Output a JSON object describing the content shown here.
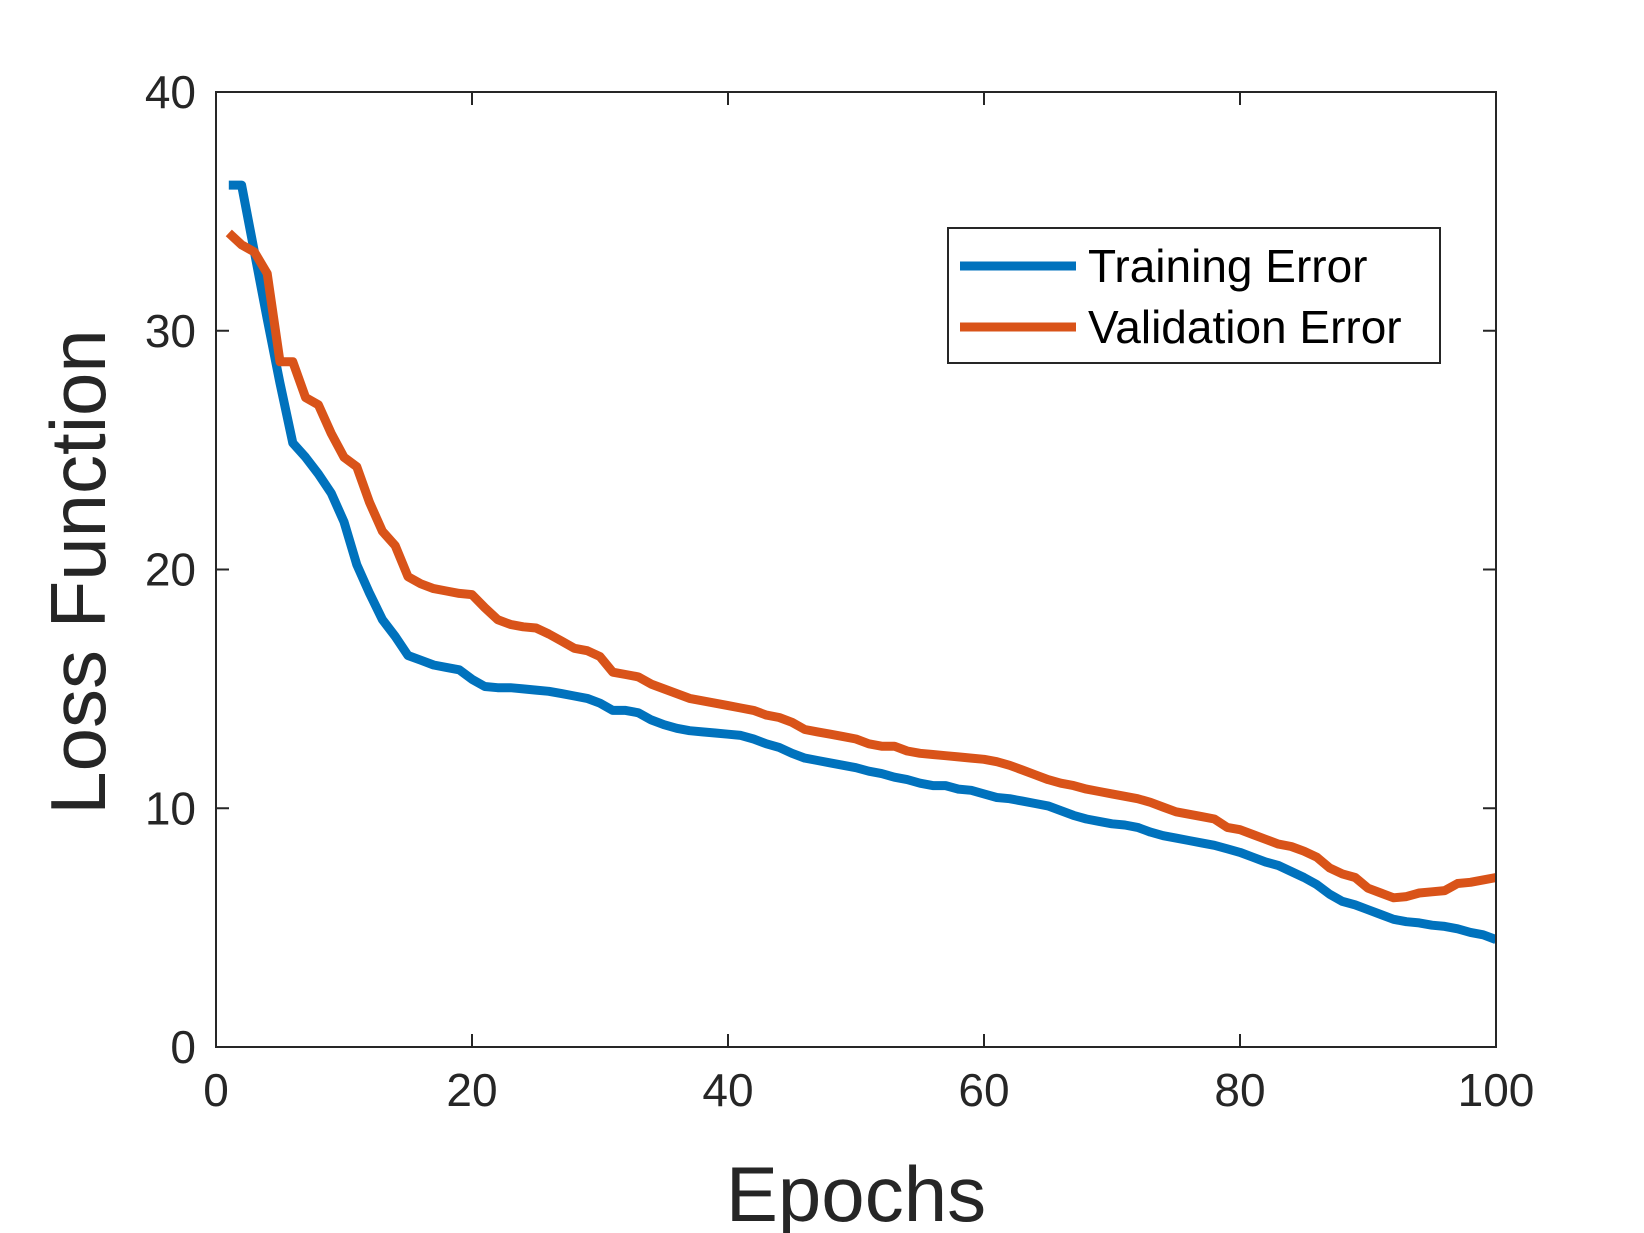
{
  "chart_data": {
    "type": "line",
    "title": "",
    "xlabel": "Epochs",
    "ylabel": "Loss Function",
    "xlim": [
      0,
      100
    ],
    "ylim": [
      0,
      40
    ],
    "xticks": [
      0,
      20,
      40,
      60,
      80,
      100
    ],
    "yticks": [
      0,
      10,
      20,
      30,
      40
    ],
    "grid": false,
    "legend_position": "top-right",
    "series": [
      {
        "name": "Training Error",
        "color": "#0072BD",
        "x": [
          1,
          2,
          3,
          4,
          5,
          6,
          7,
          8,
          9,
          10,
          11,
          12,
          13,
          14,
          15,
          16,
          17,
          18,
          19,
          20,
          21,
          22,
          23,
          24,
          25,
          26,
          27,
          28,
          29,
          30,
          31,
          32,
          33,
          34,
          35,
          36,
          37,
          38,
          39,
          40,
          41,
          42,
          43,
          44,
          45,
          46,
          47,
          48,
          49,
          50,
          51,
          52,
          53,
          54,
          55,
          56,
          57,
          58,
          59,
          60,
          61,
          62,
          63,
          64,
          65,
          66,
          67,
          68,
          69,
          70,
          71,
          72,
          73,
          74,
          75,
          76,
          77,
          78,
          79,
          80,
          81,
          82,
          83,
          84,
          85,
          86,
          87,
          88,
          89,
          90,
          91,
          92,
          93,
          94,
          95,
          96,
          97,
          98,
          99,
          100
        ],
        "y": [
          36.1,
          36.1,
          33.3,
          30.5,
          27.8,
          25.3,
          24.7,
          24.0,
          23.2,
          22.0,
          20.2,
          19.0,
          17.9,
          17.2,
          16.4,
          16.2,
          16.0,
          15.9,
          15.8,
          15.4,
          15.1,
          15.05,
          15.05,
          15.0,
          14.95,
          14.9,
          14.8,
          14.7,
          14.6,
          14.4,
          14.1,
          14.1,
          14.0,
          13.7,
          13.5,
          13.35,
          13.25,
          13.2,
          13.15,
          13.1,
          13.05,
          12.9,
          12.7,
          12.55,
          12.3,
          12.1,
          12.0,
          11.9,
          11.8,
          11.7,
          11.55,
          11.45,
          11.3,
          11.2,
          11.05,
          10.95,
          10.95,
          10.8,
          10.75,
          10.6,
          10.45,
          10.4,
          10.3,
          10.2,
          10.1,
          9.9,
          9.7,
          9.55,
          9.45,
          9.35,
          9.3,
          9.2,
          9.0,
          8.85,
          8.75,
          8.65,
          8.55,
          8.45,
          8.3,
          8.15,
          7.95,
          7.75,
          7.6,
          7.35,
          7.1,
          6.8,
          6.4,
          6.1,
          5.95,
          5.75,
          5.55,
          5.35,
          5.25,
          5.2,
          5.1,
          5.05,
          4.95,
          4.8,
          4.7,
          4.5
        ]
      },
      {
        "name": "Validation Error",
        "color": "#D95319",
        "x": [
          1,
          2,
          3,
          4,
          5,
          6,
          7,
          8,
          9,
          10,
          11,
          12,
          13,
          14,
          15,
          16,
          17,
          18,
          19,
          20,
          21,
          22,
          23,
          24,
          25,
          26,
          27,
          28,
          29,
          30,
          31,
          32,
          33,
          34,
          35,
          36,
          37,
          38,
          39,
          40,
          41,
          42,
          43,
          44,
          45,
          46,
          47,
          48,
          49,
          50,
          51,
          52,
          53,
          54,
          55,
          56,
          57,
          58,
          59,
          60,
          61,
          62,
          63,
          64,
          65,
          66,
          67,
          68,
          69,
          70,
          71,
          72,
          73,
          74,
          75,
          76,
          77,
          78,
          79,
          80,
          81,
          82,
          83,
          84,
          85,
          86,
          87,
          88,
          89,
          90,
          91,
          92,
          93,
          94,
          95,
          96,
          97,
          98,
          99,
          100
        ],
        "y": [
          34.1,
          33.6,
          33.3,
          32.4,
          28.7,
          28.7,
          27.2,
          26.9,
          25.7,
          24.7,
          24.3,
          22.8,
          21.6,
          21.0,
          19.7,
          19.4,
          19.2,
          19.1,
          19.0,
          18.95,
          18.4,
          17.9,
          17.7,
          17.6,
          17.55,
          17.3,
          17.0,
          16.7,
          16.6,
          16.35,
          15.7,
          15.6,
          15.5,
          15.2,
          15.0,
          14.8,
          14.6,
          14.5,
          14.4,
          14.3,
          14.2,
          14.1,
          13.9,
          13.8,
          13.6,
          13.3,
          13.2,
          13.1,
          13.0,
          12.9,
          12.7,
          12.6,
          12.6,
          12.4,
          12.3,
          12.25,
          12.2,
          12.15,
          12.1,
          12.05,
          11.95,
          11.8,
          11.6,
          11.4,
          11.2,
          11.05,
          10.95,
          10.8,
          10.7,
          10.6,
          10.5,
          10.4,
          10.25,
          10.05,
          9.85,
          9.75,
          9.65,
          9.55,
          9.2,
          9.1,
          8.9,
          8.7,
          8.5,
          8.4,
          8.2,
          7.95,
          7.5,
          7.25,
          7.1,
          6.65,
          6.45,
          6.25,
          6.3,
          6.45,
          6.5,
          6.55,
          6.85,
          6.9,
          7.0,
          7.1
        ]
      }
    ]
  }
}
